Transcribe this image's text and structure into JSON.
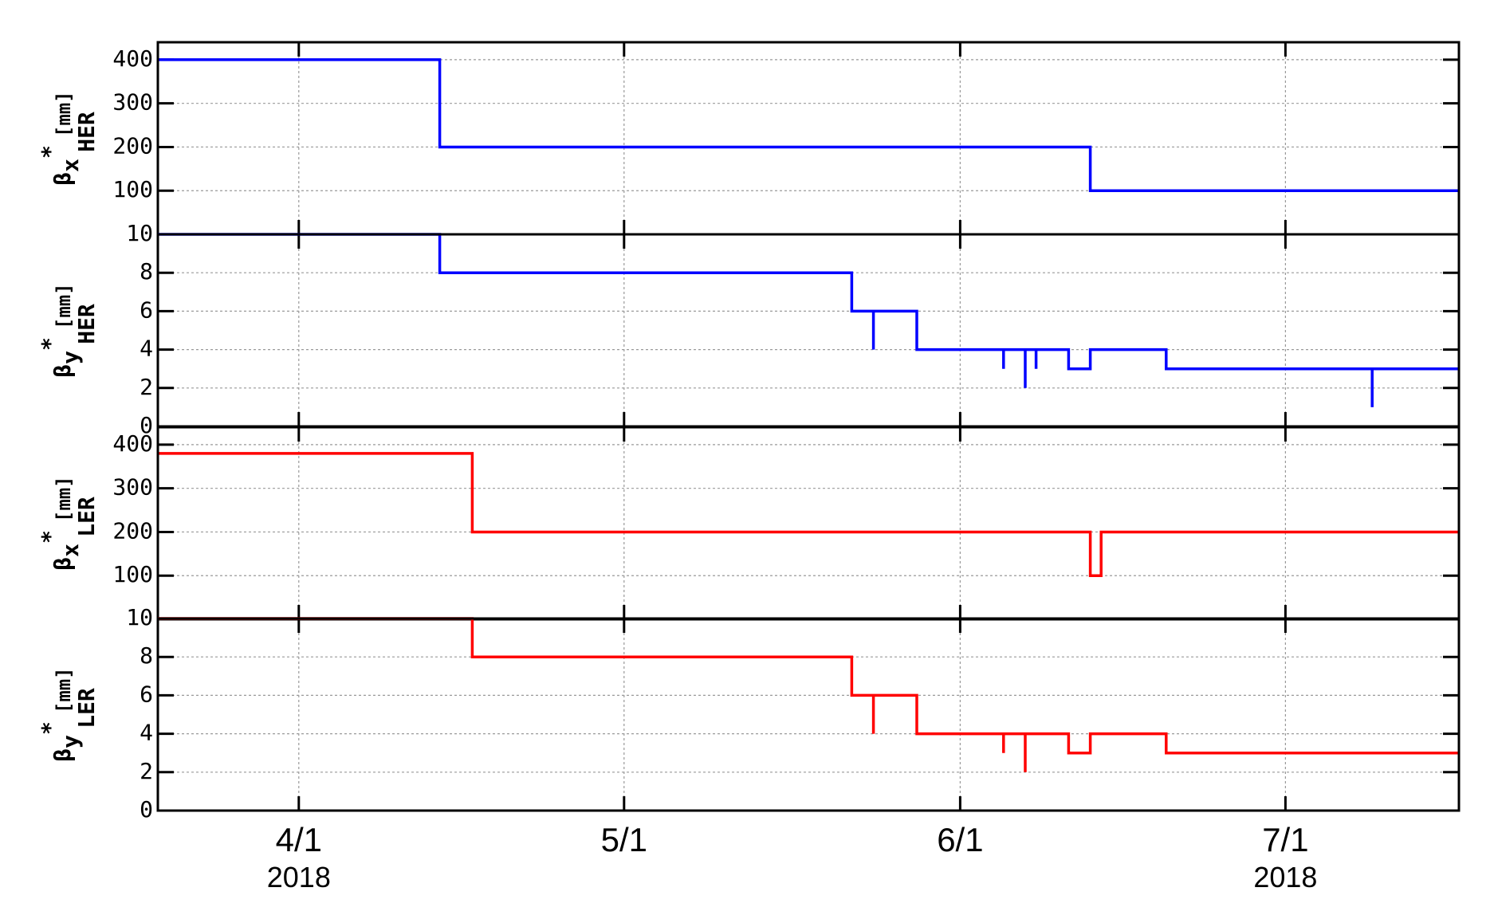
{
  "chart_data": {
    "type": "line",
    "step": "post",
    "grid": true,
    "xlim": [
      "2018-03-19",
      "2018-07-17"
    ],
    "xticks": [
      {
        "value": "2018-04-01",
        "label": "4/1"
      },
      {
        "value": "2018-05-01",
        "label": "5/1"
      },
      {
        "value": "2018-06-01",
        "label": "6/1"
      },
      {
        "value": "2018-07-01",
        "label": "7/1"
      }
    ],
    "annotations": [
      {
        "text": "2018",
        "x": "2018-04-01"
      },
      {
        "text": "2018",
        "x": "2018-07-01"
      }
    ],
    "panels": [
      {
        "ylabel": {
          "symbol": "β",
          "sub": "x",
          "sup": "*",
          "unit": "[mm]",
          "ring": "HER"
        },
        "ylim": [
          0,
          440
        ],
        "yticks": [
          100,
          200,
          300,
          400
        ],
        "x": [
          "2018-03-19",
          "2018-04-14",
          "2018-06-13",
          "2018-07-17"
        ],
        "series": [
          {
            "color": "#0000ff",
            "values": [
              400,
              200,
              100,
              100
            ]
          }
        ]
      },
      {
        "ylabel": {
          "symbol": "β",
          "sub": "y",
          "sup": "*",
          "unit": "[mm]",
          "ring": "HER"
        },
        "ylim": [
          0,
          10
        ],
        "yticks": [
          0,
          2,
          4,
          6,
          8,
          10
        ],
        "x": [
          "2018-03-19",
          "2018-04-14",
          "2018-05-22",
          "2018-05-24",
          "2018-05-24",
          "2018-05-28",
          "2018-06-05",
          "2018-06-05",
          "2018-06-07",
          "2018-06-07",
          "2018-06-08",
          "2018-06-08",
          "2018-06-11",
          "2018-06-13",
          "2018-06-20",
          "2018-07-09",
          "2018-07-09",
          "2018-07-17"
        ],
        "series": [
          {
            "color": "#0000ff",
            "values": [
              10,
              8,
              6,
              4,
              6,
              4,
              3,
              4,
              2,
              4,
              3,
              4,
              3,
              4,
              3,
              1,
              3,
              3
            ]
          }
        ]
      },
      {
        "ylabel": {
          "symbol": "β",
          "sub": "x",
          "sup": "*",
          "unit": "[mm]",
          "ring": "LER"
        },
        "ylim": [
          0,
          440
        ],
        "yticks": [
          100,
          200,
          300,
          400
        ],
        "x": [
          "2018-03-19",
          "2018-04-17",
          "2018-06-13",
          "2018-06-14",
          "2018-07-17"
        ],
        "series": [
          {
            "color": "#ff0000",
            "values": [
              380,
              200,
              100,
              200,
              200
            ]
          }
        ]
      },
      {
        "ylabel": {
          "symbol": "β",
          "sub": "y",
          "sup": "*",
          "unit": "[mm]",
          "ring": "LER"
        },
        "ylim": [
          0,
          10
        ],
        "yticks": [
          0,
          2,
          4,
          6,
          8,
          10
        ],
        "x": [
          "2018-03-19",
          "2018-04-17",
          "2018-05-22",
          "2018-05-24",
          "2018-05-24",
          "2018-05-28",
          "2018-06-05",
          "2018-06-05",
          "2018-06-07",
          "2018-06-07",
          "2018-06-11",
          "2018-06-13",
          "2018-06-20",
          "2018-07-17"
        ],
        "series": [
          {
            "color": "#ff0000",
            "values": [
              10,
              8,
              6,
              4,
              6,
              4,
              3,
              4,
              2,
              4,
              3,
              4,
              3,
              3
            ]
          }
        ]
      }
    ]
  }
}
